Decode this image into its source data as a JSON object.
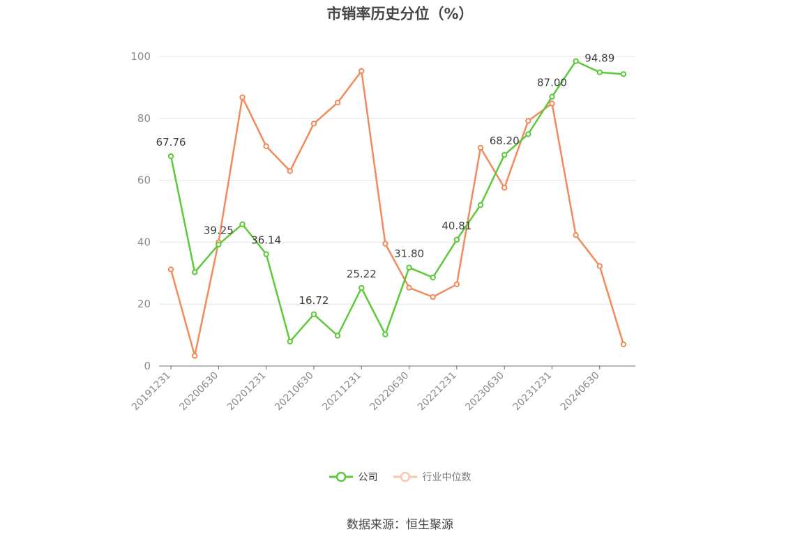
{
  "title": "市销率历史分位（%）",
  "source": "数据来源：恒生聚源",
  "colors": {
    "company": "#5cc93a",
    "industry": "#f28a5b"
  },
  "legend": {
    "company": "公司",
    "industry": "行业中位数"
  },
  "chart_data": {
    "type": "line",
    "title": "市销率历史分位（%）",
    "ylim": [
      0,
      100
    ],
    "y_ticks": [
      0,
      20,
      40,
      60,
      80,
      100
    ],
    "grid": true,
    "legend_position": "bottom",
    "x_tick_labels": [
      "20191231",
      "20200630",
      "20201231",
      "20210630",
      "20211231",
      "20220630",
      "20221231",
      "20230630",
      "20231231",
      "20240630"
    ],
    "x": [
      "20191231",
      "20200331",
      "20200630",
      "20200930",
      "20201231",
      "20210331",
      "20210630",
      "20210930",
      "20211231",
      "20220331",
      "20220630",
      "20220930",
      "20221231",
      "20230331",
      "20230630",
      "20230930",
      "20231231",
      "20240331",
      "20240630",
      "20240930"
    ],
    "series": [
      {
        "name": "公司",
        "values": [
          67.76,
          30.3,
          39.25,
          45.8,
          36.14,
          7.9,
          16.72,
          9.8,
          25.22,
          10.2,
          31.8,
          28.6,
          40.81,
          52.0,
          68.2,
          74.9,
          87.0,
          98.5,
          94.89,
          94.3
        ]
      },
      {
        "name": "行业中位数",
        "values": [
          31.2,
          3.3,
          40.0,
          86.8,
          71.0,
          63.0,
          78.3,
          85.1,
          95.3,
          39.5,
          25.3,
          22.3,
          26.4,
          70.5,
          57.6,
          79.2,
          84.8,
          42.3,
          32.3,
          7.0
        ]
      }
    ],
    "data_labels": [
      {
        "series": 0,
        "index": 0,
        "text": "67.76"
      },
      {
        "series": 0,
        "index": 2,
        "text": "39.25"
      },
      {
        "series": 0,
        "index": 4,
        "text": "36.14"
      },
      {
        "series": 0,
        "index": 6,
        "text": "16.72"
      },
      {
        "series": 0,
        "index": 8,
        "text": "25.22"
      },
      {
        "series": 0,
        "index": 10,
        "text": "31.80"
      },
      {
        "series": 0,
        "index": 12,
        "text": "40.81"
      },
      {
        "series": 0,
        "index": 14,
        "text": "68.20"
      },
      {
        "series": 0,
        "index": 16,
        "text": "87.00"
      },
      {
        "series": 0,
        "index": 18,
        "text": "94.89"
      }
    ]
  }
}
